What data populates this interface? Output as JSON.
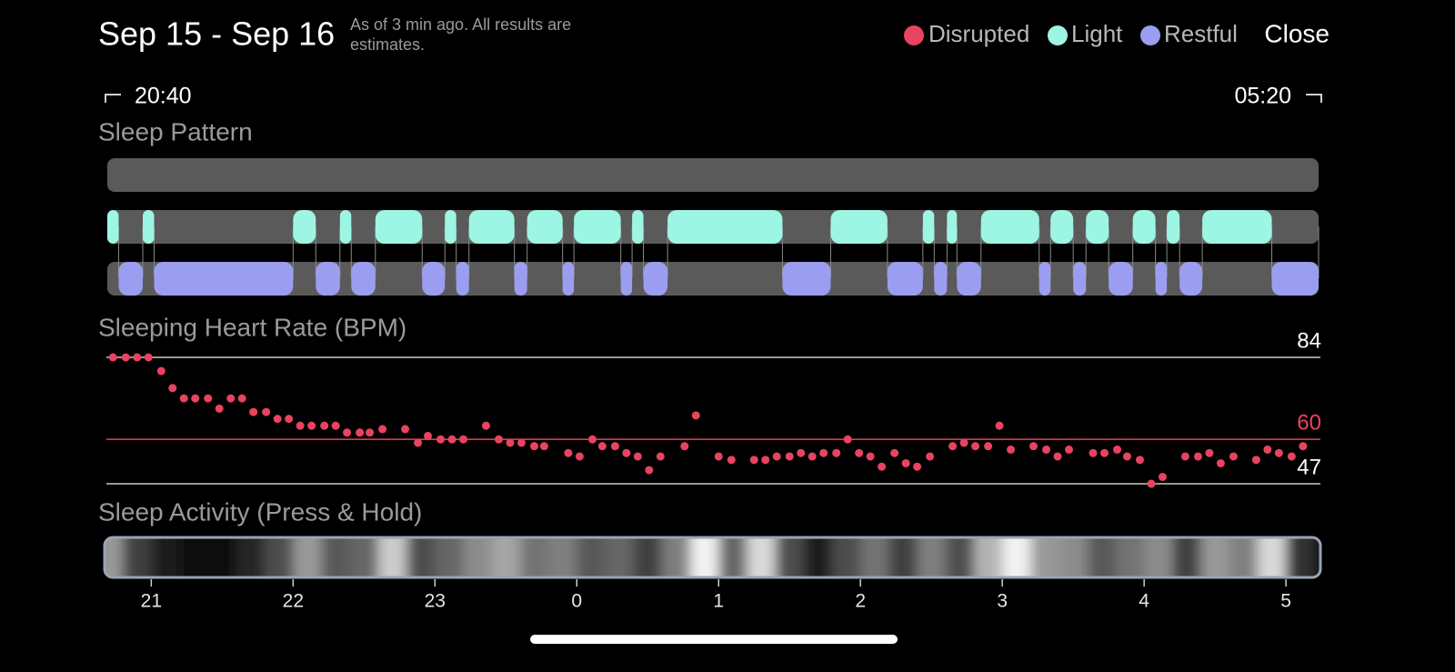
{
  "header": {
    "title": "Sep 15 - Sep 16",
    "note": "As of 3 min ago. All results are estimates.",
    "close": "Close"
  },
  "legend": [
    {
      "name": "Disrupted",
      "color": "#e8435f"
    },
    {
      "name": "Light",
      "color": "#9df5e3"
    },
    {
      "name": "Restful",
      "color": "#9b9ef0"
    }
  ],
  "time_range": {
    "start": "20:40",
    "end": "05:20"
  },
  "xlim": [
    20.69,
    29.23
  ],
  "sleep_pattern": {
    "title": "Sleep Pattern",
    "light": [
      [
        20.69,
        20.77
      ],
      [
        20.94,
        21.02
      ],
      [
        22.0,
        22.16
      ],
      [
        22.33,
        22.41
      ],
      [
        22.58,
        22.91
      ],
      [
        23.07,
        23.15
      ],
      [
        23.24,
        23.56
      ],
      [
        23.65,
        23.9
      ],
      [
        23.98,
        24.31
      ],
      [
        24.39,
        24.47
      ],
      [
        24.64,
        25.45
      ],
      [
        25.79,
        26.19
      ],
      [
        26.44,
        26.52
      ],
      [
        26.61,
        26.68
      ],
      [
        26.85,
        27.26
      ],
      [
        27.34,
        27.5
      ],
      [
        27.59,
        27.75
      ],
      [
        27.92,
        28.08
      ],
      [
        28.16,
        28.25
      ],
      [
        28.41,
        28.9
      ]
    ],
    "restful": [
      [
        20.77,
        20.94
      ],
      [
        21.02,
        22.0
      ],
      [
        22.16,
        22.33
      ],
      [
        22.41,
        22.58
      ],
      [
        22.91,
        23.07
      ],
      [
        23.15,
        23.24
      ],
      [
        23.56,
        23.65
      ],
      [
        23.9,
        23.98
      ],
      [
        24.31,
        24.39
      ],
      [
        24.47,
        24.64
      ],
      [
        25.45,
        25.79
      ],
      [
        26.19,
        26.44
      ],
      [
        26.52,
        26.61
      ],
      [
        26.68,
        26.85
      ],
      [
        27.26,
        27.34
      ],
      [
        27.5,
        27.59
      ],
      [
        27.75,
        27.92
      ],
      [
        28.08,
        28.16
      ],
      [
        28.25,
        28.41
      ],
      [
        28.9,
        29.23
      ]
    ]
  },
  "heart_rate": {
    "type": "scatter",
    "title": "Sleeping Heart Rate (BPM)",
    "color": "#e8435f",
    "x": [
      20.73,
      20.82,
      20.9,
      20.98,
      21.07,
      21.15,
      21.23,
      21.31,
      21.4,
      21.48,
      21.56,
      21.64,
      21.72,
      21.81,
      21.89,
      21.97,
      22.05,
      22.13,
      22.22,
      22.3,
      22.38,
      22.47,
      22.54,
      22.63,
      22.79,
      22.88,
      22.95,
      23.04,
      23.12,
      23.2,
      23.36,
      23.45,
      23.53,
      23.61,
      23.7,
      23.77,
      23.94,
      24.02,
      24.11,
      24.18,
      24.27,
      24.35,
      24.43,
      24.51,
      24.59,
      24.76,
      24.84,
      25.0,
      25.09,
      25.25,
      25.33,
      25.41,
      25.5,
      25.58,
      25.66,
      25.74,
      25.83,
      25.91,
      25.99,
      26.07,
      26.15,
      26.24,
      26.32,
      26.4,
      26.49,
      26.65,
      26.73,
      26.81,
      26.9,
      26.98,
      27.06,
      27.22,
      27.31,
      27.39,
      27.47,
      27.64,
      27.72,
      27.81,
      27.88,
      27.97,
      28.05,
      28.13,
      28.29,
      28.38,
      28.46,
      28.54,
      28.63,
      28.79,
      28.87,
      28.95,
      29.04,
      29.12
    ],
    "values": [
      84,
      84,
      84,
      84,
      80,
      75,
      72,
      72,
      72,
      69,
      72,
      72,
      68,
      68,
      66,
      66,
      64,
      64,
      64,
      64,
      62,
      62,
      62,
      63,
      63,
      59,
      61,
      60,
      60,
      60,
      64,
      60,
      59,
      59,
      58,
      58,
      56,
      55,
      60,
      58,
      58,
      56,
      55,
      51,
      55,
      58,
      67,
      55,
      54,
      54,
      54,
      55,
      55,
      56,
      55,
      56,
      56,
      60,
      56,
      55,
      52,
      56,
      53,
      52,
      55,
      58,
      59,
      58,
      58,
      64,
      57,
      58,
      57,
      55,
      57,
      56,
      56,
      57,
      55,
      54,
      47,
      49,
      55,
      55,
      56,
      53,
      55,
      54,
      57,
      56,
      55,
      58
    ],
    "ylim": [
      47,
      84
    ],
    "yticks": [
      47,
      60,
      84
    ],
    "ytick_colors": [
      "#c8c8c8",
      "#e8435f",
      "#c8c8c8"
    ]
  },
  "activity": {
    "title": "Sleep Activity (Press & Hold)",
    "x": [
      20.7,
      20.9,
      21.1,
      21.3,
      21.5,
      21.7,
      21.9,
      22.1,
      22.3,
      22.5,
      22.7,
      22.9,
      23.1,
      23.3,
      23.5,
      23.7,
      23.9,
      24.1,
      24.3,
      24.5,
      24.7,
      24.9,
      25.1,
      25.3,
      25.5,
      25.7,
      25.9,
      26.1,
      26.3,
      26.5,
      26.7,
      26.9,
      27.1,
      27.3,
      27.5,
      27.7,
      27.9,
      28.1,
      28.3,
      28.5,
      28.7,
      28.9,
      29.1
    ],
    "values": [
      60,
      25,
      10,
      5,
      5,
      15,
      30,
      60,
      35,
      40,
      80,
      30,
      40,
      55,
      65,
      45,
      50,
      35,
      40,
      25,
      50,
      95,
      40,
      85,
      30,
      10,
      30,
      45,
      25,
      50,
      30,
      70,
      95,
      60,
      55,
      35,
      45,
      55,
      25,
      60,
      50,
      85,
      20
    ],
    "xticks": [
      21,
      22,
      23,
      {
        "value": 24,
        "label": "0"
      },
      {
        "value": 25,
        "label": "1"
      },
      {
        "value": 26,
        "label": "2"
      },
      {
        "value": 27,
        "label": "3"
      },
      {
        "value": 28,
        "label": "4"
      },
      {
        "value": 29,
        "label": "5"
      }
    ]
  }
}
